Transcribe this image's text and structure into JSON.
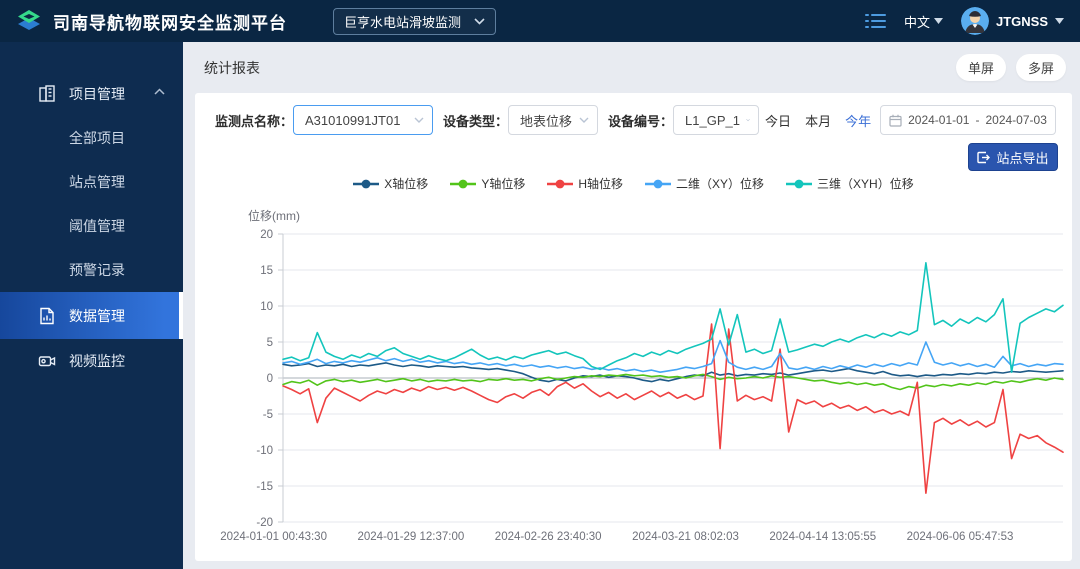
{
  "header": {
    "app_title": "司南导航物联网安全监测平台",
    "project_selector_value": "巨亨水电站滑坡监测",
    "language_label": "中文",
    "username": "JTGNSS"
  },
  "sidebar": {
    "project_mgmt": "项目管理",
    "all_projects": "全部项目",
    "station_mgmt": "站点管理",
    "threshold_mgmt": "阈值管理",
    "alert_records": "预警记录",
    "data_mgmt": "数据管理",
    "video_monitor": "视频监控"
  },
  "toolbar": {
    "page_title": "统计报表",
    "single_screen": "单屏",
    "multi_screen": "多屏"
  },
  "filters": {
    "point_label": "监测点名称：",
    "point_value": "A31010991JT01",
    "device_type_label": "设备类型：",
    "device_type_value": "地表位移",
    "device_no_label": "设备编号：",
    "device_no_value": "L1_GP_1",
    "quick_today": "今日",
    "quick_month": "本月",
    "quick_year": "今年",
    "date_start": "2024-01-01",
    "date_separator": "-",
    "date_end": "2024-07-03",
    "export_button": "站点导出"
  },
  "colors": {
    "header_bg": "#0a2643",
    "sidebar_bg": "#0e2c50",
    "active_item_blue": "#2f72d8",
    "accent_blue": "#3b6fd6",
    "export_button_bg": "#2a55ae",
    "point_select_border": "#4a9cf0"
  },
  "chart_data": {
    "type": "line",
    "title": "",
    "xlabel": "",
    "ylabel": "位移(mm)",
    "ylim": [
      -20,
      20
    ],
    "y_ticks": [
      20,
      15,
      10,
      5,
      0,
      -5,
      -10,
      -15,
      -20
    ],
    "x_tick_labels": [
      "2024-01-01 00:43:30",
      "2024-01-29 12:37:00",
      "2024-02-26 23:40:30",
      "2024-03-21 08:02:03",
      "2024-04-14 13:05:55",
      "2024-06-06 05:47:53"
    ],
    "x_range_days": [
      0,
      183
    ],
    "grid": true,
    "legend_position": "top",
    "series": [
      {
        "name": "X轴位移",
        "color": "#1d5a87",
        "values": [
          1.9,
          1.7,
          1.8,
          2.0,
          1.6,
          1.8,
          1.7,
          1.9,
          1.6,
          1.8,
          1.7,
          1.9,
          2.1,
          1.8,
          1.6,
          1.8,
          1.7,
          1.5,
          1.7,
          1.6,
          1.5,
          1.6,
          1.4,
          1.3,
          1.2,
          1.3,
          1.1,
          0.9,
          0.6,
          0.1,
          -0.3,
          -0.5,
          -0.2,
          -0.4,
          0.0,
          0.3,
          0.2,
          0.4,
          0.1,
          0.3,
          0.2,
          0.0,
          -0.3,
          -0.5,
          -0.2,
          -0.4,
          -0.1,
          0.2,
          0.4,
          0.3,
          0.8,
          0.4,
          0.6,
          0.3,
          0.5,
          0.4,
          0.6,
          0.5,
          0.7,
          0.4,
          0.6,
          0.8,
          1.0,
          1.1,
          0.9,
          1.1,
          1.3,
          1.0,
          0.8,
          0.6,
          0.9,
          0.5,
          0.3,
          0.4,
          0.2,
          0.4,
          0.3,
          0.5,
          0.4,
          0.6,
          0.5,
          0.7,
          0.6,
          0.8,
          0.7,
          0.9,
          0.8,
          1.0,
          0.9,
          0.8,
          0.9,
          1.0
        ]
      },
      {
        "name": "Y轴位移",
        "color": "#52c41a",
        "values": [
          -0.9,
          -0.5,
          -0.7,
          -0.3,
          -1.0,
          -0.4,
          -0.2,
          -0.5,
          -0.3,
          -0.6,
          -0.4,
          -0.2,
          -0.5,
          -0.3,
          -0.1,
          -0.4,
          -0.2,
          -0.5,
          -0.3,
          -0.4,
          -0.2,
          -0.4,
          -0.3,
          -0.5,
          -0.2,
          -0.3,
          -0.1,
          -0.3,
          -0.2,
          -0.4,
          -0.1,
          0.1,
          -0.2,
          0.0,
          0.2,
          0.1,
          0.3,
          0.2,
          0.4,
          0.3,
          0.5,
          0.3,
          0.4,
          0.2,
          0.3,
          0.1,
          0.2,
          0.0,
          0.3,
          0.5,
          0.2,
          -0.2,
          0.1,
          -0.1,
          0.0,
          0.2,
          0.0,
          0.3,
          0.1,
          0.2,
          0.0,
          -0.2,
          -0.4,
          -0.3,
          -0.6,
          -0.8,
          -0.6,
          -0.9,
          -0.7,
          -1.0,
          -0.8,
          -1.3,
          -1.6,
          -1.2,
          -1.4,
          -1.0,
          -1.2,
          -0.9,
          -1.1,
          -0.8,
          -1.0,
          -0.7,
          -0.9,
          -0.5,
          -0.7,
          -0.4,
          -0.6,
          -0.3,
          -0.1,
          -0.3,
          0.0,
          -0.2
        ]
      },
      {
        "name": "H轴位移",
        "color": "#ef4242",
        "values": [
          -1.1,
          -1.6,
          -2.2,
          -1.5,
          -6.2,
          -2.8,
          -1.4,
          -2.0,
          -2.6,
          -3.2,
          -2.4,
          -1.8,
          -2.2,
          -1.6,
          -2.0,
          -1.4,
          -1.8,
          -1.2,
          -1.6,
          -1.3,
          -1.7,
          -1.3,
          -1.8,
          -2.4,
          -3.0,
          -3.4,
          -2.6,
          -2.2,
          -2.8,
          -2.0,
          -1.6,
          -2.4,
          -1.2,
          -0.6,
          -1.4,
          -0.8,
          -1.8,
          -2.6,
          -2.0,
          -2.8,
          -2.2,
          -3.0,
          -2.4,
          -1.8,
          -2.6,
          -2.0,
          -2.8,
          -2.3,
          -3.0,
          -2.5,
          7.5,
          -9.8,
          6.8,
          -3.2,
          -2.4,
          -3.0,
          -2.6,
          -3.2,
          4.0,
          -7.5,
          -3.0,
          -3.6,
          -3.2,
          -4.0,
          -3.5,
          -4.2,
          -3.8,
          -4.5,
          -4.0,
          -4.8,
          -4.4,
          -5.0,
          -4.6,
          -5.2,
          -0.6,
          -16.0,
          -6.2,
          -5.6,
          -6.4,
          -5.8,
          -6.6,
          -6.0,
          -6.8,
          -6.2,
          -1.6,
          -11.2,
          -7.8,
          -8.4,
          -8.0,
          -9.0,
          -9.6,
          -10.3
        ]
      },
      {
        "name": "二维（XY）位移",
        "color": "#45a5f5",
        "values": [
          2.1,
          2.3,
          1.9,
          2.2,
          2.6,
          2.0,
          2.3,
          2.1,
          2.4,
          2.2,
          2.5,
          2.8,
          2.4,
          2.7,
          2.3,
          2.6,
          2.2,
          2.4,
          2.1,
          2.3,
          2.0,
          2.2,
          1.9,
          2.1,
          1.8,
          2.0,
          1.7,
          1.9,
          1.6,
          1.8,
          1.5,
          1.7,
          1.4,
          1.6,
          1.3,
          1.5,
          1.2,
          1.4,
          1.1,
          1.3,
          1.0,
          1.2,
          0.9,
          1.1,
          0.8,
          1.0,
          1.2,
          1.5,
          1.3,
          1.6,
          2.0,
          5.2,
          2.2,
          1.5,
          1.2,
          1.5,
          1.2,
          1.6,
          3.4,
          1.4,
          1.2,
          1.5,
          1.2,
          1.6,
          1.3,
          1.7,
          1.4,
          1.8,
          1.5,
          1.9,
          1.6,
          2.0,
          1.7,
          2.1,
          1.8,
          5.0,
          2.2,
          1.8,
          2.1,
          1.7,
          2.0,
          1.6,
          1.9,
          1.5,
          3.0,
          1.7,
          2.0,
          1.6,
          1.9,
          1.7,
          2.0,
          1.9
        ]
      },
      {
        "name": "三维（XYH）位移",
        "color": "#13c5bc",
        "values": [
          2.6,
          2.9,
          2.4,
          2.8,
          6.3,
          3.6,
          3.0,
          2.6,
          3.2,
          2.8,
          3.4,
          3.0,
          3.8,
          4.2,
          3.4,
          3.0,
          2.6,
          3.1,
          2.7,
          2.4,
          2.8,
          3.4,
          4.0,
          3.2,
          2.6,
          2.9,
          2.5,
          3.0,
          2.7,
          3.2,
          3.5,
          3.8,
          3.3,
          3.6,
          3.1,
          2.7,
          1.6,
          1.2,
          1.8,
          2.4,
          2.8,
          3.4,
          3.0,
          3.6,
          3.2,
          3.8,
          3.4,
          4.0,
          4.4,
          4.8,
          5.4,
          9.6,
          4.6,
          8.8,
          3.6,
          4.0,
          3.4,
          3.8,
          8.2,
          3.6,
          3.9,
          4.3,
          4.7,
          4.4,
          5.0,
          5.4,
          5.0,
          5.6,
          6.0,
          5.6,
          6.2,
          5.8,
          6.4,
          6.0,
          6.6,
          16.0,
          7.4,
          8.0,
          7.2,
          8.2,
          7.6,
          8.4,
          7.8,
          8.8,
          11.0,
          0.8,
          7.6,
          8.4,
          9.0,
          9.6,
          9.2,
          10.1
        ]
      }
    ]
  }
}
